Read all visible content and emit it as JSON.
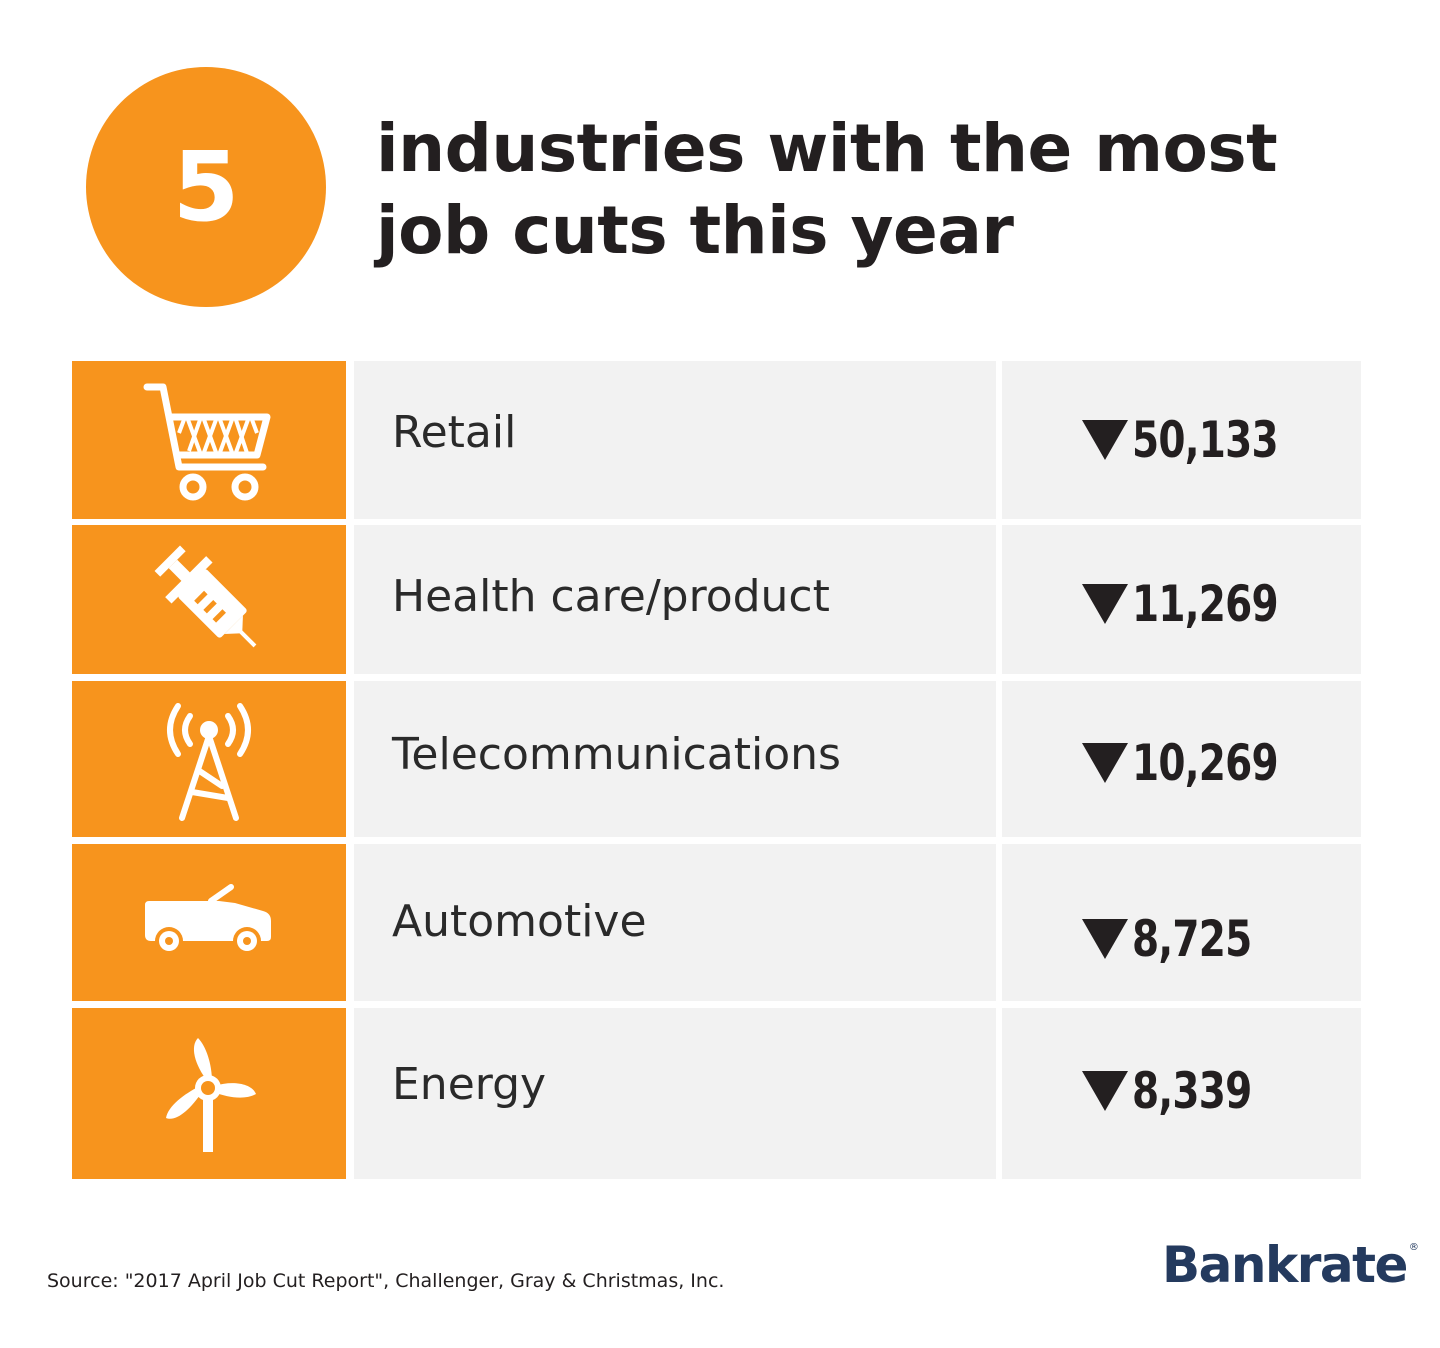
{
  "badge": {
    "number": "5"
  },
  "title": {
    "line1": "industries with the most",
    "line2": "job cuts this year"
  },
  "colors": {
    "accent": "#f7941d",
    "cell_bg": "#f2f2f2",
    "text": "#231f20",
    "logo": "#243a5e"
  },
  "chart_data": {
    "type": "table",
    "title": "5 industries with the most job cuts this year",
    "columns": [
      "icon",
      "industry",
      "job cuts"
    ],
    "rows": [
      {
        "icon": "shopping-cart-icon",
        "industry": "Retail",
        "display": "50,133",
        "value": 50133
      },
      {
        "icon": "syringe-icon",
        "industry": "Health care/product",
        "display": "11,269",
        "value": 11269
      },
      {
        "icon": "radio-tower-icon",
        "industry": "Telecommunications",
        "display": "10,269",
        "value": 10269
      },
      {
        "icon": "convertible-car-icon",
        "industry": "Automotive",
        "display": "8,725",
        "value": 8725
      },
      {
        "icon": "wind-turbine-icon",
        "industry": "Energy",
        "display": "8,339",
        "value": 8339
      }
    ],
    "indicator": "down-arrow"
  },
  "footer": {
    "source": "Source: \"2017 April Job Cut Report\",  Challenger, Gray & Christmas, Inc.",
    "logo": "Bankrate",
    "logo_mark": "®"
  }
}
